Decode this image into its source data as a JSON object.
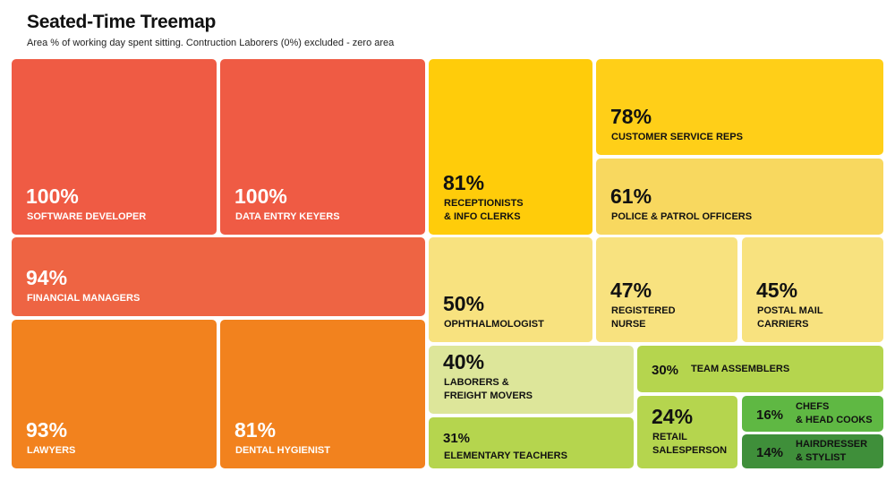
{
  "title": "Seated-Time Treemap",
  "subtitle": "Area % of working day spent sitting. Contruction Laborers (0%) excluded - zero area",
  "chart_data": {
    "type": "treemap",
    "title": "Seated-Time Treemap",
    "subtitle": "Area % of working day spent sitting. Contruction Laborers (0%) excluded - zero area",
    "unit": "%",
    "items": [
      {
        "label": "SOFTWARE DEVELOPER",
        "pct_text": "100%",
        "value": 100,
        "color": "#EF5B44"
      },
      {
        "label": "DATA ENTRY KEYERS",
        "pct_text": "100%",
        "value": 100,
        "color": "#EF5B44"
      },
      {
        "label": "FINANCIAL MANAGERS",
        "pct_text": "94%",
        "value": 94,
        "color": "#EE6443"
      },
      {
        "label": "LAWYERS",
        "pct_text": "93%",
        "value": 93,
        "color": "#F2821E"
      },
      {
        "label": "DENTAL HYGIENIST",
        "pct_text": "81%",
        "value": 81,
        "color": "#F2821E"
      },
      {
        "label": "RECEPTIONISTS\n& INFO CLERKS",
        "pct_text": "81%",
        "value": 81,
        "color": "#FFCC0A"
      },
      {
        "label": "CUSTOMER SERVICE REPS",
        "pct_text": "78%",
        "value": 78,
        "color": "#FFCF18"
      },
      {
        "label": "POLICE & PATROL OFFICERS",
        "pct_text": "61%",
        "value": 61,
        "color": "#F8D85F"
      },
      {
        "label": "OPHTHALMOLOGIST",
        "pct_text": "50%",
        "value": 50,
        "color": "#F8E27F"
      },
      {
        "label": "REGISTERED\nNURSE",
        "pct_text": "47%",
        "value": 47,
        "color": "#F8E27F"
      },
      {
        "label": "POSTAL MAIL\nCARRIERS",
        "pct_text": "45%",
        "value": 45,
        "color": "#F8E27F"
      },
      {
        "label": "LABORERS &\nFREIGHT MOVERS",
        "pct_text": "40%",
        "value": 40,
        "color": "#DDE69A"
      },
      {
        "label": "TEAM ASSEMBLERS",
        "pct_text": "30%",
        "value": 30,
        "color": "#B5D54E"
      },
      {
        "label": "ELEMENTARY TEACHERS",
        "pct_text": "31%",
        "value": 31,
        "color": "#B5D54E"
      },
      {
        "label": "RETAIL\nSALESPERSON",
        "pct_text": "24%",
        "value": 24,
        "color": "#B5D54E"
      },
      {
        "label": "CHEFS\n& HEAD COOKS",
        "pct_text": "16%",
        "value": 16,
        "color": "#5FB843"
      },
      {
        "label": "HAIRDRESSER\n& STYLIST",
        "pct_text": "14%",
        "value": 14,
        "color": "#3F8F3A"
      }
    ]
  }
}
